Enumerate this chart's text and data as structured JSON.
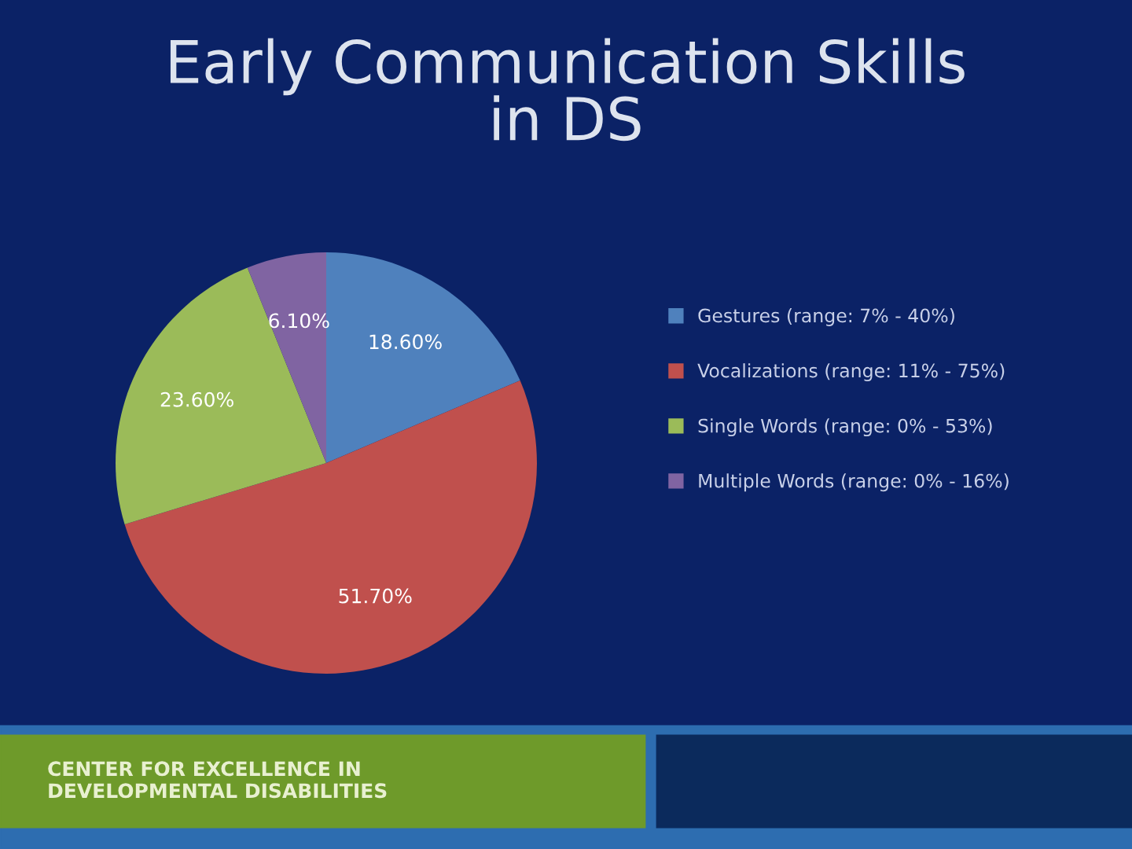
{
  "chart_data": {
    "type": "pie",
    "title": "Early Communication Skills\nin DS",
    "categories": [
      "Gestures (range: 7% - 40%)",
      "Vocalizations (range: 11% - 75%)",
      "Single Words (range: 0% - 53%)",
      "Multiple Words (range: 0% - 16%)"
    ],
    "values": [
      18.6,
      51.7,
      23.6,
      6.1
    ],
    "value_labels": [
      "18.60%",
      "51.70%",
      "23.60%",
      "6.10%"
    ],
    "colors": [
      "#4f81bd",
      "#c0504d",
      "#9bbb59",
      "#8064a2"
    ],
    "legend": "right",
    "annotations": [
      "CENTER FOR EXCELLENCE IN\nDEVELOPMENTAL DISABILITIES"
    ]
  }
}
